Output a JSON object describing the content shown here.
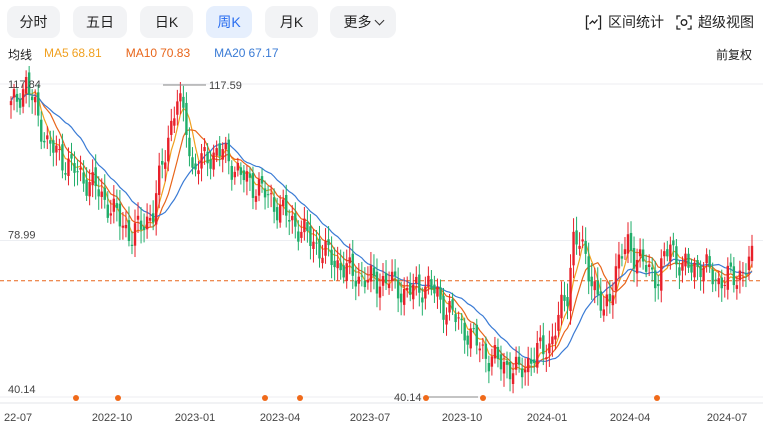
{
  "tabs": [
    {
      "label": "分时",
      "active": false
    },
    {
      "label": "五日",
      "active": false
    },
    {
      "label": "日K",
      "active": false
    },
    {
      "label": "周K",
      "active": true
    },
    {
      "label": "月K",
      "active": false
    },
    {
      "label": "更多",
      "active": false
    }
  ],
  "tools": {
    "range_stats": "区间统计",
    "super_view": "超级视图"
  },
  "legend": {
    "title": "均线",
    "ma5": {
      "label": "MA5",
      "value": "68.81",
      "color": "#f0a020"
    },
    "ma10": {
      "label": "MA10",
      "value": "70.83",
      "color": "#e8651a"
    },
    "ma20": {
      "label": "MA20",
      "value": "67.17",
      "color": "#3a7bd5"
    }
  },
  "adjust_label": "前复权",
  "colors": {
    "up": "#e8202a",
    "down": "#1fae6a",
    "accent": "#2a6ef0"
  },
  "chart_data": {
    "type": "candlestick",
    "y_labels": [
      "117.84",
      "78.99",
      "40.14"
    ],
    "ylim": [
      40.14,
      117.84
    ],
    "x_ticks": [
      "22-07",
      "2022-10",
      "2023-01",
      "2023-04",
      "2023-07",
      "2023-10",
      "2024-01",
      "2024-04",
      "2024-07"
    ],
    "annotations": {
      "max": "117.59",
      "min": "40.14"
    },
    "reference_line": 69.0
  }
}
